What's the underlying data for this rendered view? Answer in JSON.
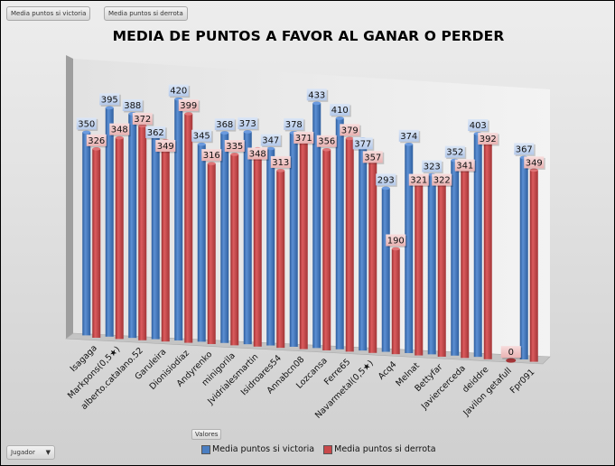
{
  "field_buttons": [
    "Media puntos si victoria",
    "Media puntos si derrota"
  ],
  "axis_field_button": "Jugador",
  "values_button": "Valores",
  "colors": {
    "victoria": "#4a7ec2",
    "derrota": "#c9484a"
  },
  "chart_data": {
    "type": "bar",
    "title": "MEDIA DE PUNTOS A FAVOR AL GANAR O PERDER",
    "xlabel": "",
    "ylabel": "",
    "ylim": [
      0,
      450
    ],
    "grid": false,
    "legend": "bottom",
    "categories": [
      "Isagaga",
      "Markpons(0,5★)",
      "alberto.catalano.52",
      "Garuleira",
      "Dionisiodiaz",
      "Andyrenko",
      "minigorila",
      "Jvidrialesmartin",
      "Isidroares54",
      "Annabcn08",
      "Lozcansa",
      "Ferre65",
      "Navarmetal(0,5★)",
      "Acq4",
      "Melnat",
      "Bettyfar",
      "Javiercerceda",
      "deiddre",
      "Javilon getafull",
      "Fpr091"
    ],
    "series": [
      {
        "name": "Media puntos si victoria",
        "values": [
          350,
          395,
          388,
          362,
          420,
          345,
          368,
          373,
          347,
          378,
          433,
          410,
          377,
          293,
          374,
          323,
          352,
          403,
          null,
          367
        ]
      },
      {
        "name": "Media puntos si derrota",
        "values": [
          326,
          348,
          372,
          349,
          399,
          316,
          335,
          348,
          313,
          371,
          356,
          379,
          357,
          190,
          321,
          322,
          341,
          392,
          0,
          349
        ]
      }
    ]
  }
}
